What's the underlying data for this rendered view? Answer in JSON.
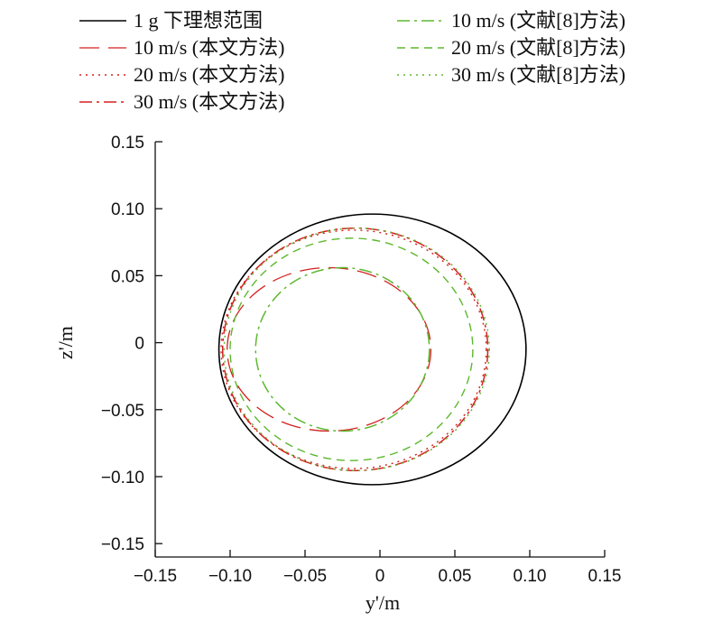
{
  "chart_data": {
    "type": "line",
    "title": "",
    "xlabel": "y'/m",
    "ylabel": "z'/m",
    "xlim": [
      -0.15,
      0.15
    ],
    "ylim": [
      -0.16,
      0.15
    ],
    "x_ticks": [
      "−0.15",
      "−0.10",
      "−0.05",
      "0",
      "0.05",
      "0.10",
      "0.15"
    ],
    "y_ticks": [
      "0.15",
      "0.10",
      "0.05",
      "0",
      "−0.05",
      "−0.10",
      "−0.15"
    ],
    "x_tick_values": [
      -0.15,
      -0.1,
      -0.05,
      0,
      0.05,
      0.1,
      0.15
    ],
    "y_tick_values": [
      0.15,
      0.1,
      0.05,
      0,
      -0.05,
      -0.1,
      -0.15
    ],
    "grid": false,
    "legend_position": "top",
    "series": [
      {
        "name": "1 g 下理想范围",
        "color": "#000000",
        "dash": "solid",
        "shape": "ellipse",
        "center": [
          -0.005,
          -0.005
        ],
        "radius_y": 0.1025,
        "radius_z": 0.101
      },
      {
        "name": "10 m/s (本文方法)",
        "color": "#d42020",
        "dash": "long-dash",
        "shape": "ellipse",
        "center": [
          -0.034,
          -0.005
        ],
        "radius_y": 0.068,
        "radius_z": 0.061
      },
      {
        "name": "20 m/s (本文方法)",
        "color": "#d42020",
        "dash": "dot",
        "shape": "ellipse",
        "center": [
          -0.0175,
          -0.005
        ],
        "radius_y": 0.0885,
        "radius_z": 0.089
      },
      {
        "name": "30 m/s (本文方法)",
        "color": "#d42020",
        "dash": "dash-dot",
        "shape": "ellipse",
        "center": [
          -0.0165,
          -0.005
        ],
        "radius_y": 0.0885,
        "radius_z": 0.0905
      },
      {
        "name": "10 m/s (文献[8]方法)",
        "color": "#5cb82e",
        "dash": "dash-dot",
        "shape": "ellipse",
        "center": [
          -0.025,
          -0.005
        ],
        "radius_y": 0.058,
        "radius_z": 0.061
      },
      {
        "name": "20 m/s (文献[8]方法)",
        "color": "#5cb82e",
        "dash": "dash",
        "shape": "ellipse",
        "center": [
          -0.019,
          -0.005
        ],
        "radius_y": 0.081,
        "radius_z": 0.083
      },
      {
        "name": "30 m/s (文献[8]方法)",
        "color": "#5cb82e",
        "dash": "dot",
        "shape": "ellipse",
        "center": [
          -0.0155,
          -0.005
        ],
        "radius_y": 0.0885,
        "radius_z": 0.0905
      }
    ]
  }
}
